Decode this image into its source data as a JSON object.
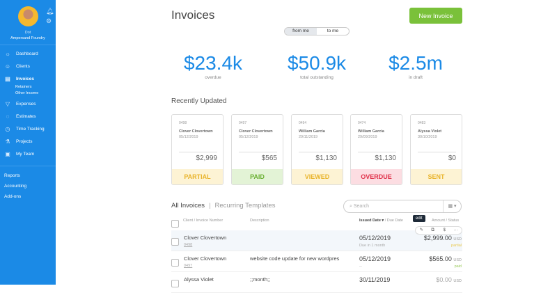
{
  "sidebar": {
    "user_name": "Dot",
    "company": "Ampersand Foundry",
    "items": [
      {
        "label": "Dashboard",
        "icon": "dashboard-icon"
      },
      {
        "label": "Clients",
        "icon": "clients-icon"
      },
      {
        "label": "Invoices",
        "icon": "invoices-icon",
        "active": true
      },
      {
        "label": "Expenses",
        "icon": "expenses-icon"
      },
      {
        "label": "Estimates",
        "icon": "estimates-icon"
      },
      {
        "label": "Time Tracking",
        "icon": "stopwatch-icon"
      },
      {
        "label": "Projects",
        "icon": "projects-icon"
      },
      {
        "label": "My Team",
        "icon": "team-icon"
      }
    ],
    "invoice_sub": [
      "Retainers",
      "Other Income"
    ],
    "bottom": [
      "Reports",
      "Accounting",
      "Add-ons"
    ]
  },
  "header": {
    "title": "Invoices",
    "new_invoice": "New Invoice",
    "toggle": [
      "from me",
      "to me"
    ]
  },
  "stats": [
    {
      "value": "$23.4k",
      "label": "overdue"
    },
    {
      "value": "$50.9k",
      "label": "total outstanding"
    },
    {
      "value": "$2.5m",
      "label": "in draft"
    }
  ],
  "recent": {
    "title": "Recently Updated",
    "cards": [
      {
        "number": "0498",
        "client": "Clover Clovertown",
        "date": "05/12/2019",
        "amount": "$2,999",
        "status": "PARTIAL",
        "color": "#e9b42c",
        "bg": "#fdf3d4"
      },
      {
        "number": "0497",
        "client": "Clover Clovertown",
        "date": "05/12/2019",
        "amount": "$565",
        "status": "PAID",
        "color": "#6ab033",
        "bg": "#e3f3d6"
      },
      {
        "number": "0494",
        "client": "William Garcia",
        "date": "29/11/2019",
        "amount": "$1,130",
        "status": "VIEWED",
        "color": "#e9b42c",
        "bg": "#fdf3d4"
      },
      {
        "number": "0474",
        "client": "William Garcia",
        "date": "29/09/2019",
        "amount": "$1,130",
        "status": "OVERDUE",
        "color": "#e0324b",
        "bg": "#fcdde2"
      },
      {
        "number": "0483",
        "client": "Alyssa Violet",
        "date": "30/10/2019",
        "amount": "$0",
        "status": "SENT",
        "color": "#e9b42c",
        "bg": "#fdf3d4"
      }
    ]
  },
  "list": {
    "tabs": [
      "All Invoices",
      "Recurring Templates"
    ],
    "search_placeholder": "Search",
    "columns": {
      "client": "Client / Invoice Number",
      "description": "Description",
      "issued": "Issued Date ▾",
      "due": "/ Due Date",
      "amount": "Amount / Status"
    },
    "tooltip": "edit",
    "row_actions": [
      "✎",
      "⧉",
      "$",
      "···"
    ],
    "rows": [
      {
        "client": "Clover Clovertown",
        "number": "0498",
        "description": "",
        "date": "05/12/2019",
        "due": "Due in 1 month",
        "amount": "$2,999.00",
        "currency": "USD",
        "status": "partial",
        "status_color": "#e9c84a"
      },
      {
        "client": "Clover Clovertown",
        "number": "0497",
        "description": "website code update for new wordpres",
        "date": "05/12/2019",
        "due": "--",
        "amount": "$565.00",
        "currency": "USD",
        "status": "paid",
        "status_color": "#9acb5c"
      },
      {
        "client": "Alyssa Violet",
        "number": "",
        "description": ";;month;;",
        "date": "30/11/2019",
        "due": "",
        "amount": "$0.00",
        "currency": "USD",
        "status": "",
        "status_color": "#aaa"
      }
    ]
  }
}
